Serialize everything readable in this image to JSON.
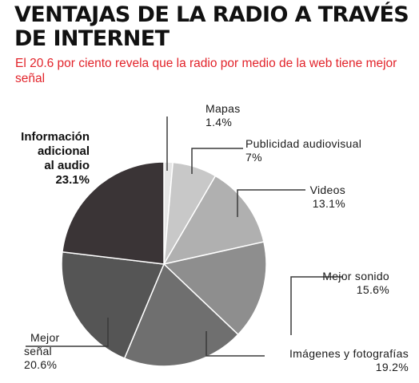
{
  "title": "VENTAJAS DE LA RADIO A TRAVÉS DE INTERNET",
  "subtitle": "El 20.6 por ciento revela que la radio por medio de la web tiene mejor señal",
  "chart_data": {
    "type": "pie",
    "title": "VENTAJAS DE LA RADIO A TRAVÉS DE INTERNET",
    "subtitle": "El 20.6 por ciento revela que la radio por medio de la web tiene mejor señal",
    "legend": "none",
    "slices": [
      {
        "label": "Mapas",
        "value": 1.4,
        "value_text": "1.4%",
        "color": "#e6e6e6"
      },
      {
        "label": "Publicidad audiovisual",
        "value": 7,
        "value_text": "7%",
        "color": "#c8c8c8"
      },
      {
        "label": "Videos",
        "value": 13.1,
        "value_text": "13.1%",
        "color": "#b0b0b0"
      },
      {
        "label": "Mejor sonido",
        "value": 15.6,
        "value_text": "15.6%",
        "color": "#8e8e8e"
      },
      {
        "label": "Imágenes y fotografías",
        "value": 19.2,
        "value_text": "19.2%",
        "color": "#6f6f6f"
      },
      {
        "label": "Mejor señal",
        "value": 20.6,
        "value_text": "20.6%",
        "color": "#555555"
      },
      {
        "label": "Información adicional al audio",
        "value": 23.1,
        "value_text": "23.1%",
        "color": "#3a3436",
        "bold": true
      }
    ]
  }
}
